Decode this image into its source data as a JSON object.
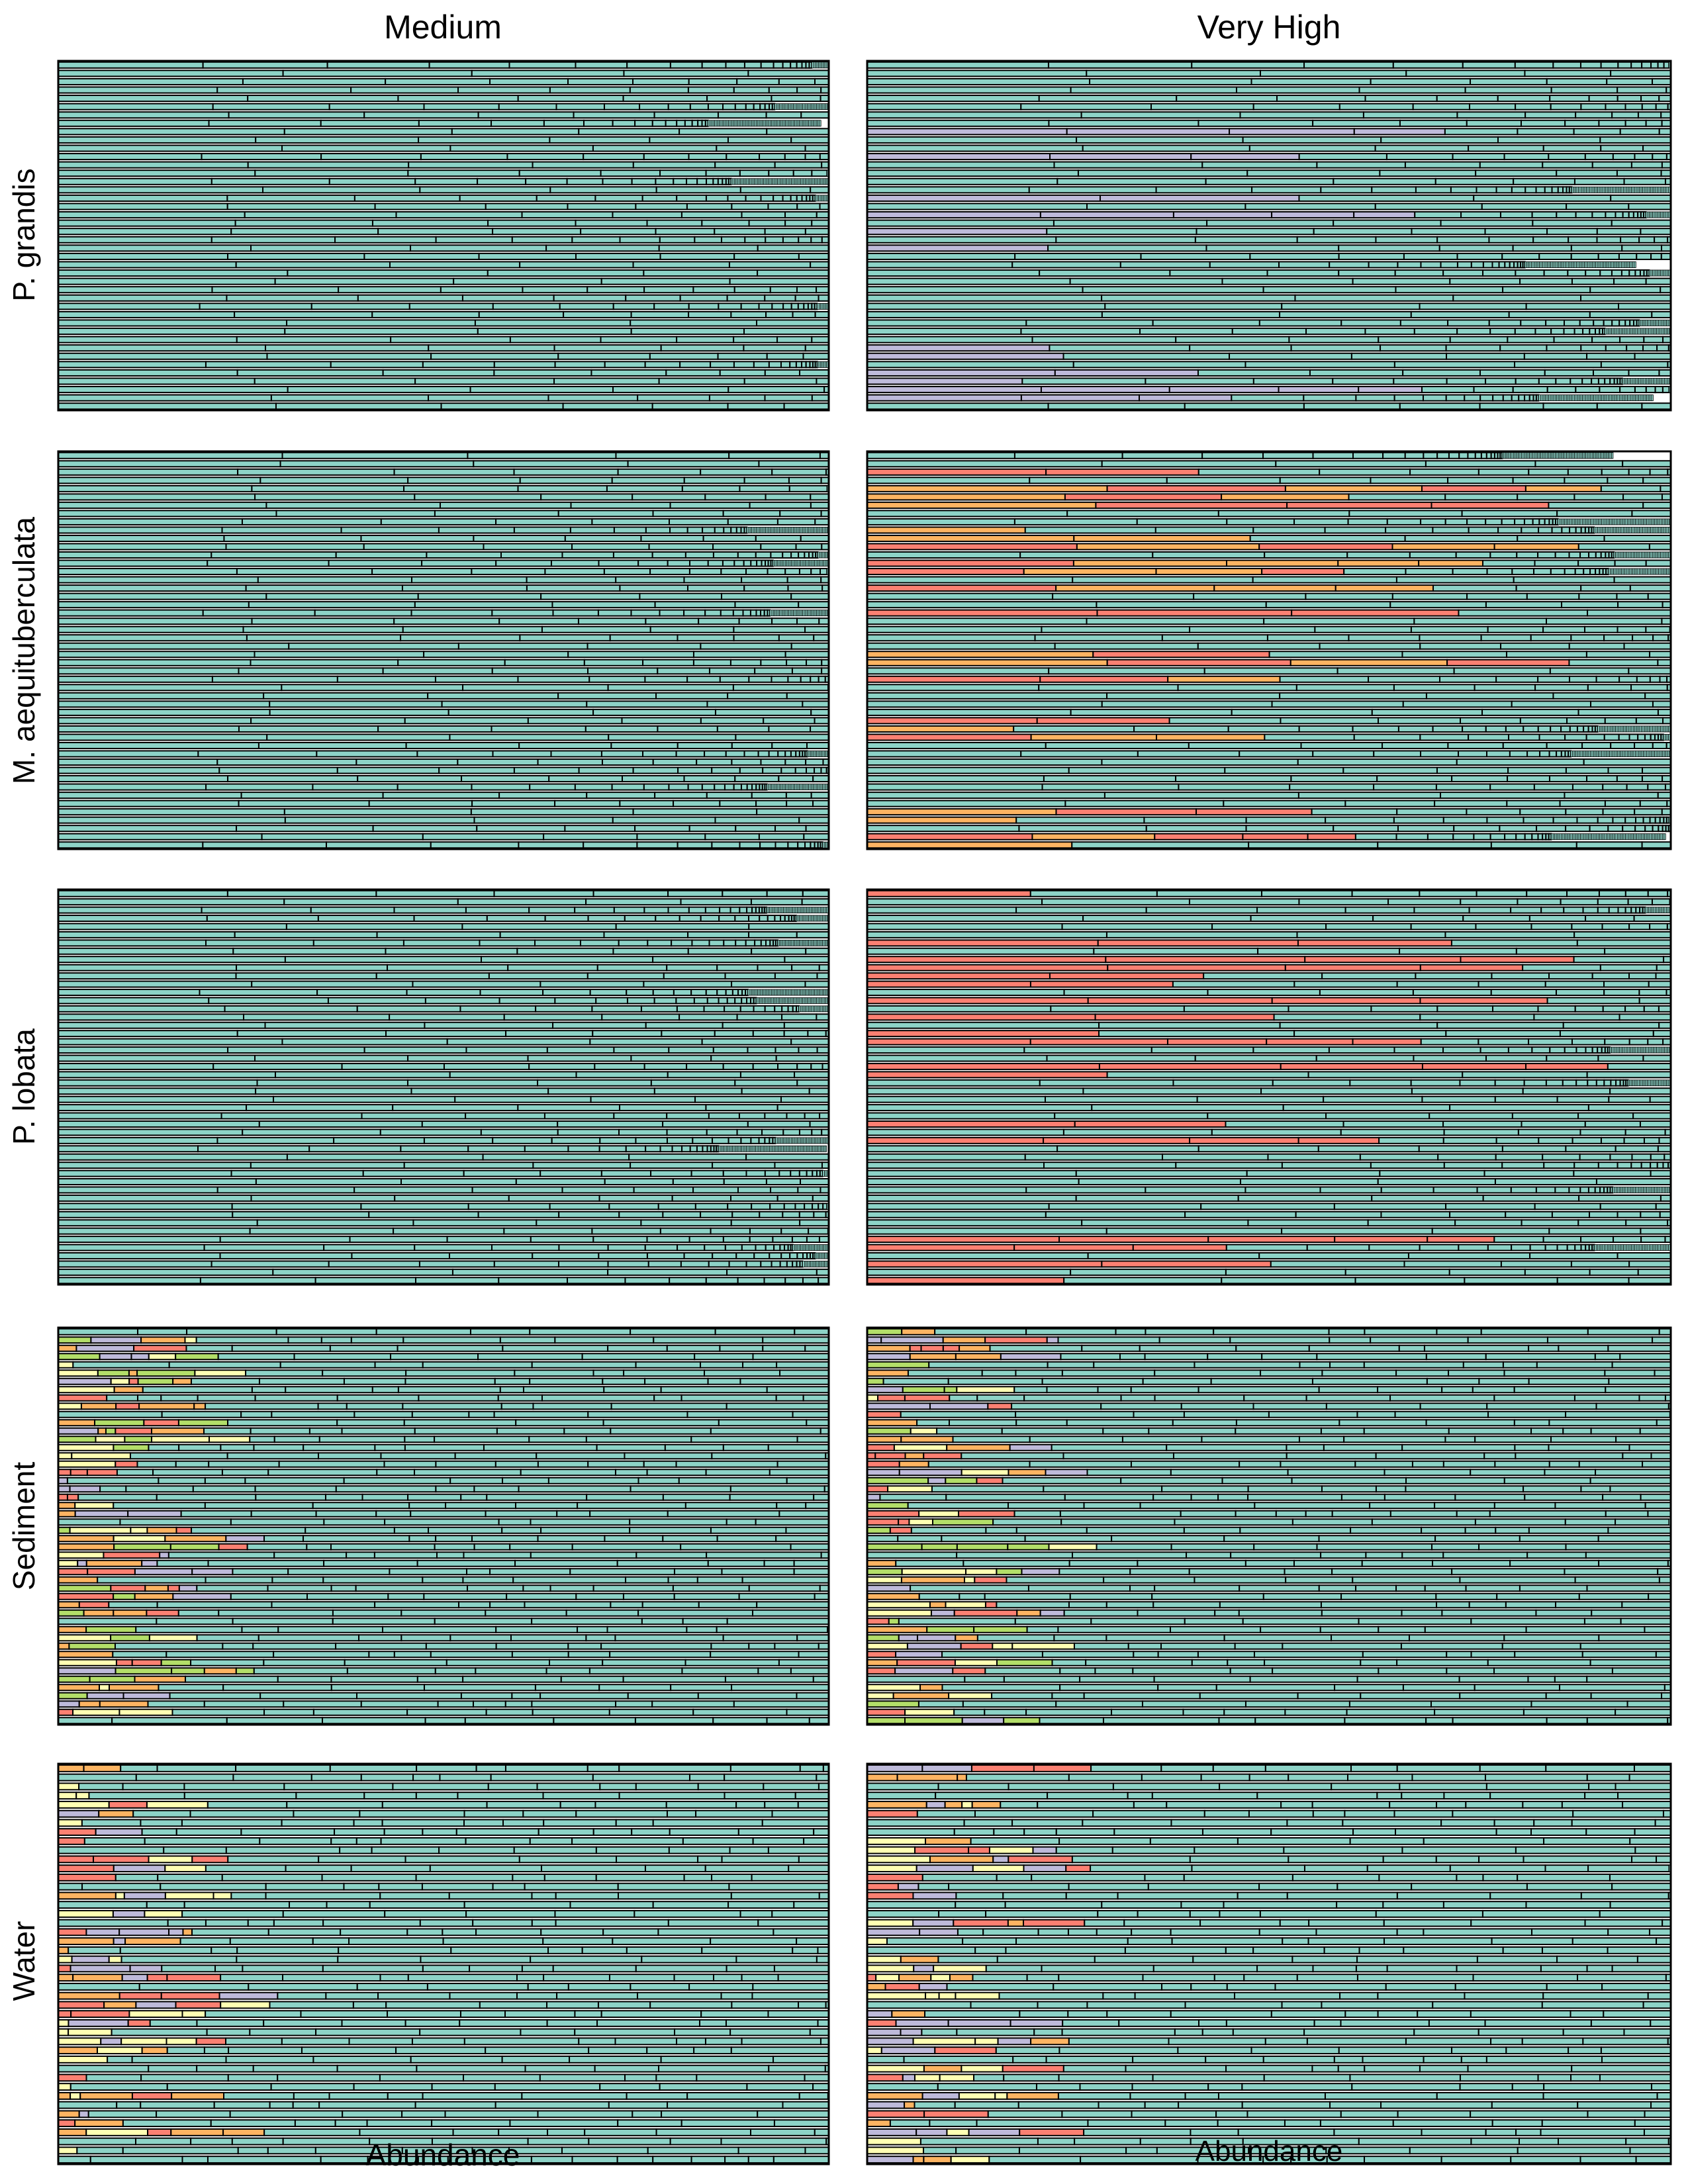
{
  "figure": {
    "columns": [
      "Medium",
      "Very High"
    ],
    "rows": [
      "P. grandis",
      "M. aequituberculata",
      "P. lobata",
      "Sediment",
      "Water"
    ],
    "xlabels": [
      "Abundance",
      "Abundance"
    ]
  },
  "colors": {
    "dominant": "#8dd3c7",
    "yellow": "#ffffb3",
    "lavender": "#bebada",
    "red": "#fb8072",
    "orange": "#fdb462",
    "green": "#b3de69",
    "edge": "#000000"
  },
  "chart_data": [
    {
      "type": "bar",
      "orientation": "horizontal-stacked",
      "column": "Medium",
      "row": "P. grandis",
      "n_samples": 42,
      "taxa_colors": [
        "dominant"
      ],
      "xlabel": "",
      "ylabel": "P. grandis",
      "xlim": [
        0,
        1
      ],
      "grid": false
    },
    {
      "type": "bar",
      "orientation": "horizontal-stacked",
      "column": "Very High",
      "row": "P. grandis",
      "n_samples": 42,
      "taxa_colors": [
        "dominant",
        "lavender"
      ],
      "xlabel": "",
      "ylabel": "",
      "xlim": [
        0,
        1
      ],
      "grid": false
    },
    {
      "type": "bar",
      "orientation": "horizontal-stacked",
      "column": "Medium",
      "row": "M. aequituberculata",
      "n_samples": 48,
      "taxa_colors": [
        "dominant"
      ],
      "xlabel": "",
      "ylabel": "M. aequituberculata",
      "xlim": [
        0,
        1
      ],
      "grid": false
    },
    {
      "type": "bar",
      "orientation": "horizontal-stacked",
      "column": "Very High",
      "row": "M. aequituberculata",
      "n_samples": 48,
      "taxa_colors": [
        "dominant",
        "red",
        "orange"
      ],
      "xlabel": "",
      "ylabel": "",
      "xlim": [
        0,
        1
      ],
      "grid": false
    },
    {
      "type": "bar",
      "orientation": "horizontal-stacked",
      "column": "Medium",
      "row": "P. lobata",
      "n_samples": 48,
      "taxa_colors": [
        "dominant"
      ],
      "xlabel": "",
      "ylabel": "P. lobata",
      "xlim": [
        0,
        1
      ],
      "grid": false
    },
    {
      "type": "bar",
      "orientation": "horizontal-stacked",
      "column": "Very High",
      "row": "P. lobata",
      "n_samples": 48,
      "taxa_colors": [
        "dominant",
        "red"
      ],
      "xlabel": "",
      "ylabel": "",
      "xlim": [
        0,
        1
      ],
      "grid": false
    },
    {
      "type": "bar",
      "orientation": "horizontal-stacked",
      "column": "Medium",
      "row": "Sediment",
      "n_samples": 48,
      "taxa_colors": [
        "dominant",
        "yellow",
        "lavender",
        "red",
        "orange",
        "green"
      ],
      "xlabel": "",
      "ylabel": "Sediment",
      "xlim": [
        0,
        1
      ],
      "grid": false
    },
    {
      "type": "bar",
      "orientation": "horizontal-stacked",
      "column": "Very High",
      "row": "Sediment",
      "n_samples": 48,
      "taxa_colors": [
        "dominant",
        "yellow",
        "lavender",
        "red",
        "orange",
        "green"
      ],
      "xlabel": "",
      "ylabel": "",
      "xlim": [
        0,
        1
      ],
      "grid": false
    },
    {
      "type": "bar",
      "orientation": "horizontal-stacked",
      "column": "Medium",
      "row": "Water",
      "n_samples": 44,
      "taxa_colors": [
        "dominant",
        "yellow",
        "lavender",
        "red",
        "orange"
      ],
      "xlabel": "Abundance",
      "ylabel": "Water",
      "xlim": [
        0,
        1
      ],
      "grid": false
    },
    {
      "type": "bar",
      "orientation": "horizontal-stacked",
      "column": "Very High",
      "row": "Water",
      "n_samples": 44,
      "taxa_colors": [
        "dominant",
        "yellow",
        "lavender",
        "red",
        "orange"
      ],
      "xlabel": "Abundance",
      "ylabel": "",
      "xlim": [
        0,
        1
      ],
      "grid": false
    }
  ]
}
